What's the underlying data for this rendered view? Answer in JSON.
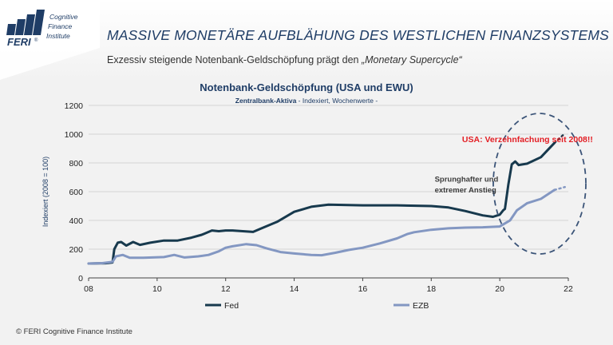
{
  "logo": {
    "brand": "FERI",
    "registered": "®",
    "line1": "Cognitive",
    "line2": "Finance",
    "line3": "Institute"
  },
  "header": {
    "title": "MASSIVE MONETÄRE AUFBLÄHUNG DES WESTLICHEN FINANZSYSTEMS",
    "subtitle_main": "Exzessiv steigende Notenbank-Geldschöpfung prägt den ",
    "subtitle_em": "„Monetary Supercycle“"
  },
  "footer": {
    "text": "© FERI Cognitive Finance Institute"
  },
  "colors": {
    "fed": "#17394d",
    "ezb": "#8397c2",
    "highlight": "#e31e24",
    "title": "#1f3d66",
    "ellipse": "#3b5478"
  },
  "chart_data": {
    "type": "line",
    "title": "Notenbank-Geldschöpfung (USA und EWU)",
    "subtitle_main": "Zentralbank-Aktiva",
    "subtitle_detail": " - Indexiert, Wochenwerte -",
    "ylabel": "Indexiert (2008 = 100)",
    "xlabel": "",
    "xlim": [
      8,
      22
    ],
    "ylim": [
      0,
      1200
    ],
    "x_ticks": [
      "08",
      "10",
      "12",
      "14",
      "16",
      "18",
      "20",
      "22"
    ],
    "y_ticks": [
      "0",
      "200",
      "400",
      "600",
      "800",
      "1000",
      "1200"
    ],
    "grid": "horizontal",
    "legend_position": "bottom",
    "series": [
      {
        "name": "Fed",
        "points": [
          [
            8.0,
            100
          ],
          [
            8.5,
            102
          ],
          [
            8.7,
            108
          ],
          [
            8.75,
            200
          ],
          [
            8.85,
            245
          ],
          [
            8.95,
            250
          ],
          [
            9.1,
            225
          ],
          [
            9.3,
            250
          ],
          [
            9.5,
            230
          ],
          [
            9.8,
            245
          ],
          [
            10.2,
            260
          ],
          [
            10.6,
            260
          ],
          [
            11.0,
            280
          ],
          [
            11.3,
            300
          ],
          [
            11.6,
            330
          ],
          [
            11.8,
            325
          ],
          [
            12.0,
            330
          ],
          [
            12.2,
            330
          ],
          [
            12.5,
            325
          ],
          [
            12.8,
            320
          ],
          [
            13.0,
            340
          ],
          [
            13.5,
            390
          ],
          [
            14.0,
            460
          ],
          [
            14.5,
            495
          ],
          [
            15.0,
            510
          ],
          [
            16.0,
            505
          ],
          [
            17.0,
            505
          ],
          [
            18.0,
            500
          ],
          [
            18.5,
            490
          ],
          [
            19.0,
            465
          ],
          [
            19.5,
            435
          ],
          [
            19.8,
            425
          ],
          [
            20.0,
            440
          ],
          [
            20.1,
            470
          ],
          [
            20.15,
            480
          ],
          [
            20.25,
            650
          ],
          [
            20.35,
            790
          ],
          [
            20.45,
            810
          ],
          [
            20.55,
            785
          ],
          [
            20.8,
            795
          ],
          [
            21.2,
            840
          ],
          [
            21.6,
            940
          ]
        ],
        "projection": [
          [
            21.6,
            940
          ],
          [
            21.9,
            1005
          ]
        ]
      },
      {
        "name": "EZB",
        "points": [
          [
            8.0,
            100
          ],
          [
            8.4,
            103
          ],
          [
            8.7,
            112
          ],
          [
            8.8,
            150
          ],
          [
            9.0,
            160
          ],
          [
            9.2,
            140
          ],
          [
            9.6,
            140
          ],
          [
            10.2,
            145
          ],
          [
            10.5,
            160
          ],
          [
            10.8,
            142
          ],
          [
            11.2,
            150
          ],
          [
            11.5,
            160
          ],
          [
            11.8,
            185
          ],
          [
            12.0,
            210
          ],
          [
            12.2,
            220
          ],
          [
            12.6,
            235
          ],
          [
            12.9,
            228
          ],
          [
            13.2,
            205
          ],
          [
            13.6,
            180
          ],
          [
            14.0,
            170
          ],
          [
            14.5,
            160
          ],
          [
            14.8,
            158
          ],
          [
            15.2,
            175
          ],
          [
            15.6,
            195
          ],
          [
            16.0,
            210
          ],
          [
            16.5,
            240
          ],
          [
            17.0,
            275
          ],
          [
            17.3,
            305
          ],
          [
            17.5,
            318
          ],
          [
            18.0,
            335
          ],
          [
            18.5,
            345
          ],
          [
            19.0,
            350
          ],
          [
            19.5,
            352
          ],
          [
            20.0,
            358
          ],
          [
            20.3,
            400
          ],
          [
            20.5,
            470
          ],
          [
            20.8,
            520
          ],
          [
            21.2,
            550
          ],
          [
            21.6,
            612
          ]
        ],
        "projection": [
          [
            21.6,
            612
          ],
          [
            21.9,
            632
          ]
        ]
      }
    ],
    "annotations": [
      {
        "text": "USA: Verzehnfachung  seit 2008!!",
        "x": 18.9,
        "y": 945,
        "style": "highlight"
      },
      {
        "text": "Sprunghafter und",
        "x": 18.1,
        "y": 670,
        "style": "note"
      },
      {
        "text": "extremer Anstieg",
        "x": 18.1,
        "y": 595,
        "style": "note"
      }
    ]
  }
}
